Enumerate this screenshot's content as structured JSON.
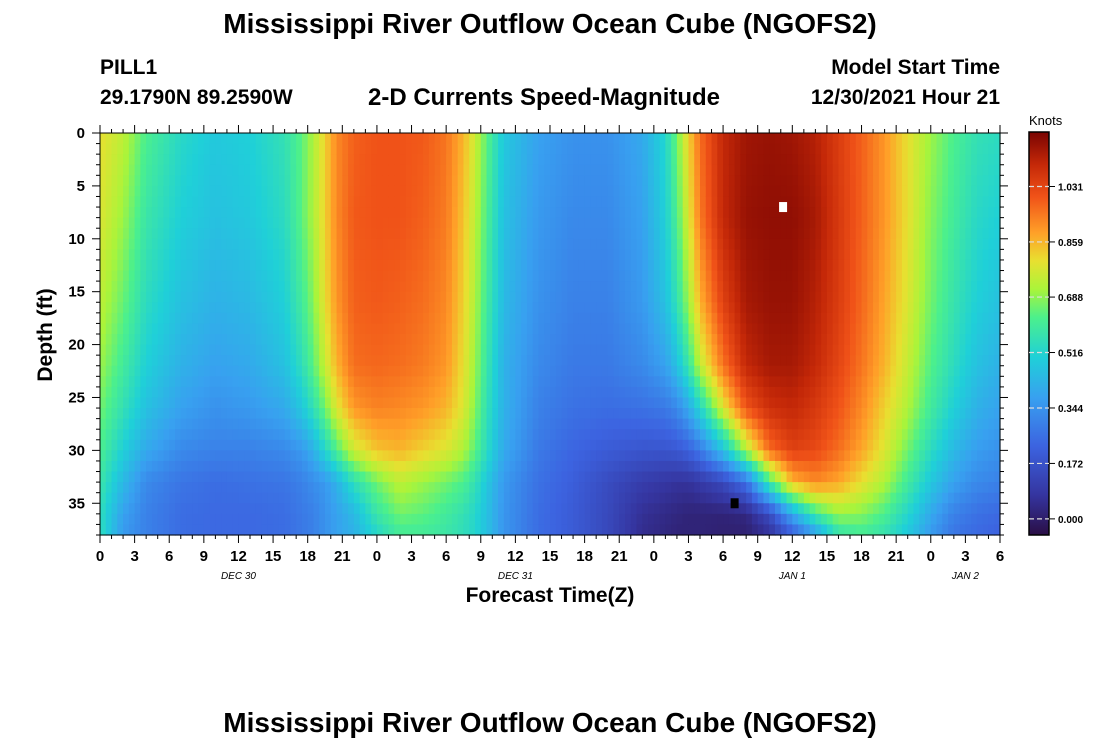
{
  "title": "Mississippi River Outflow Ocean Cube (NGOFS2)",
  "bottom_title": "Mississippi River Outflow Ocean Cube (NGOFS2)",
  "station": {
    "name": "PILL1",
    "coords": "29.1790N  89.2590W"
  },
  "plot_title": "2-D Currents Speed-Magnitude",
  "model_start": {
    "label": "Model Start Time",
    "value": "12/30/2021 Hour 21"
  },
  "chart_data": {
    "type": "heatmap",
    "xlabel": "Forecast Time(Z)",
    "ylabel": "Depth (ft)",
    "x_range_hours": [
      0,
      78
    ],
    "y_range_ft": [
      0,
      38
    ],
    "x_tick_labels": [
      "0",
      "3",
      "6",
      "9",
      "12",
      "15",
      "18",
      "21",
      "0",
      "3",
      "6",
      "9",
      "12",
      "15",
      "18",
      "21",
      "0",
      "3",
      "6",
      "9",
      "12",
      "15",
      "18",
      "21",
      "0",
      "3",
      "6"
    ],
    "date_labels": [
      {
        "label": "DEC 30",
        "hour": 12
      },
      {
        "label": "DEC 31",
        "hour": 36
      },
      {
        "label": "JAN 1",
        "hour": 60
      },
      {
        "label": "JAN 2",
        "hour": 75
      }
    ],
    "y_ticks": [
      0,
      5,
      10,
      15,
      20,
      25,
      30,
      35
    ],
    "colorbar": {
      "unit": "Knots",
      "min": -0.05,
      "max": 1.2,
      "ticks": [
        0.0,
        0.172,
        0.344,
        0.516,
        0.688,
        0.859,
        1.031
      ],
      "tick_labels": [
        "0.000",
        "0.172",
        "0.344",
        "0.516",
        "0.688",
        "0.859",
        "1.031"
      ]
    },
    "markers": [
      {
        "kind": "max",
        "color": "#ffffff",
        "hour": 59.2,
        "depth": 7
      },
      {
        "kind": "min",
        "color": "#000000",
        "hour": 55.0,
        "depth": 35
      }
    ],
    "depth_profile_ft": [
      0,
      8,
      16,
      22,
      26,
      30,
      33,
      36,
      38
    ],
    "speed_columns": [
      {
        "hour": 0,
        "speed_knots": [
          0.8,
          0.78,
          0.74,
          0.7,
          0.66,
          0.62,
          0.58,
          0.55,
          0.55
        ]
      },
      {
        "hour": 2,
        "speed_knots": [
          0.74,
          0.7,
          0.65,
          0.6,
          0.56,
          0.5,
          0.44,
          0.38,
          0.36
        ]
      },
      {
        "hour": 4,
        "speed_knots": [
          0.62,
          0.58,
          0.54,
          0.5,
          0.46,
          0.4,
          0.32,
          0.3,
          0.3
        ]
      },
      {
        "hour": 7,
        "speed_knots": [
          0.53,
          0.5,
          0.46,
          0.42,
          0.38,
          0.32,
          0.27,
          0.25,
          0.25
        ]
      },
      {
        "hour": 10,
        "speed_knots": [
          0.48,
          0.46,
          0.42,
          0.38,
          0.34,
          0.3,
          0.25,
          0.24,
          0.24
        ]
      },
      {
        "hour": 13,
        "speed_knots": [
          0.5,
          0.48,
          0.44,
          0.4,
          0.36,
          0.3,
          0.26,
          0.24,
          0.24
        ]
      },
      {
        "hour": 16,
        "speed_knots": [
          0.56,
          0.54,
          0.5,
          0.46,
          0.4,
          0.32,
          0.27,
          0.25,
          0.25
        ]
      },
      {
        "hour": 17.5,
        "speed_knots": [
          0.64,
          0.64,
          0.6,
          0.55,
          0.48,
          0.36,
          0.3,
          0.28,
          0.28
        ]
      },
      {
        "hour": 18.5,
        "speed_knots": [
          0.72,
          0.72,
          0.68,
          0.64,
          0.56,
          0.42,
          0.33,
          0.3,
          0.3
        ]
      },
      {
        "hour": 19.5,
        "speed_knots": [
          0.82,
          0.82,
          0.8,
          0.75,
          0.66,
          0.52,
          0.36,
          0.34,
          0.34
        ]
      },
      {
        "hour": 20.5,
        "speed_knots": [
          0.92,
          0.92,
          0.9,
          0.86,
          0.78,
          0.62,
          0.42,
          0.38,
          0.38
        ]
      },
      {
        "hour": 22,
        "speed_knots": [
          0.98,
          0.99,
          0.98,
          0.96,
          0.9,
          0.76,
          0.55,
          0.44,
          0.42
        ]
      },
      {
        "hour": 24,
        "speed_knots": [
          1.0,
          1.0,
          0.99,
          0.97,
          0.93,
          0.84,
          0.66,
          0.58,
          0.52
        ]
      },
      {
        "hour": 26,
        "speed_knots": [
          1.0,
          1.0,
          0.98,
          0.96,
          0.92,
          0.86,
          0.74,
          0.66,
          0.6
        ]
      },
      {
        "hour": 28,
        "speed_knots": [
          0.99,
          0.98,
          0.96,
          0.94,
          0.9,
          0.82,
          0.7,
          0.64,
          0.6
        ]
      },
      {
        "hour": 30,
        "speed_knots": [
          0.95,
          0.94,
          0.92,
          0.9,
          0.86,
          0.78,
          0.66,
          0.6,
          0.58
        ]
      },
      {
        "hour": 31.5,
        "speed_knots": [
          0.86,
          0.84,
          0.82,
          0.8,
          0.78,
          0.72,
          0.62,
          0.56,
          0.55
        ]
      },
      {
        "hour": 32.5,
        "speed_knots": [
          0.76,
          0.74,
          0.72,
          0.7,
          0.68,
          0.64,
          0.56,
          0.52,
          0.52
        ]
      },
      {
        "hour": 33.5,
        "speed_knots": [
          0.64,
          0.62,
          0.6,
          0.58,
          0.56,
          0.54,
          0.48,
          0.46,
          0.46
        ]
      },
      {
        "hour": 35,
        "speed_knots": [
          0.48,
          0.46,
          0.44,
          0.42,
          0.42,
          0.4,
          0.36,
          0.35,
          0.35
        ]
      },
      {
        "hour": 38,
        "speed_knots": [
          0.38,
          0.36,
          0.34,
          0.32,
          0.3,
          0.28,
          0.26,
          0.25,
          0.25
        ]
      },
      {
        "hour": 41,
        "speed_knots": [
          0.34,
          0.32,
          0.3,
          0.28,
          0.26,
          0.23,
          0.21,
          0.2,
          0.2
        ]
      },
      {
        "hour": 44,
        "speed_knots": [
          0.34,
          0.32,
          0.3,
          0.28,
          0.25,
          0.2,
          0.15,
          0.14,
          0.14
        ]
      },
      {
        "hour": 47,
        "speed_knots": [
          0.4,
          0.38,
          0.36,
          0.32,
          0.26,
          0.18,
          0.1,
          0.06,
          0.05
        ]
      },
      {
        "hour": 49,
        "speed_knots": [
          0.52,
          0.5,
          0.46,
          0.38,
          0.28,
          0.18,
          0.08,
          0.04,
          0.03
        ]
      },
      {
        "hour": 50,
        "speed_knots": [
          0.66,
          0.62,
          0.56,
          0.46,
          0.32,
          0.19,
          0.07,
          0.03,
          0.02
        ]
      },
      {
        "hour": 51,
        "speed_knots": [
          0.82,
          0.78,
          0.7,
          0.58,
          0.4,
          0.22,
          0.07,
          0.02,
          0.02
        ]
      },
      {
        "hour": 52,
        "speed_knots": [
          0.96,
          0.94,
          0.86,
          0.74,
          0.52,
          0.28,
          0.09,
          0.02,
          0.02
        ]
      },
      {
        "hour": 54,
        "speed_knots": [
          1.1,
          1.1,
          1.04,
          0.95,
          0.78,
          0.46,
          0.14,
          0.02,
          0.01
        ]
      },
      {
        "hour": 56,
        "speed_knots": [
          1.15,
          1.16,
          1.14,
          1.1,
          1.0,
          0.72,
          0.26,
          0.03,
          0.01
        ]
      },
      {
        "hour": 58,
        "speed_knots": [
          1.16,
          1.17,
          1.16,
          1.14,
          1.08,
          0.96,
          0.6,
          0.15,
          0.06
        ]
      },
      {
        "hour": 60,
        "speed_knots": [
          1.15,
          1.17,
          1.16,
          1.14,
          1.1,
          1.04,
          0.86,
          0.4,
          0.2
        ]
      },
      {
        "hour": 62,
        "speed_knots": [
          1.12,
          1.14,
          1.12,
          1.1,
          1.06,
          1.02,
          0.92,
          0.6,
          0.36
        ]
      },
      {
        "hour": 64,
        "speed_knots": [
          1.05,
          1.06,
          1.05,
          1.03,
          1.0,
          0.96,
          0.88,
          0.7,
          0.56
        ]
      },
      {
        "hour": 66,
        "speed_knots": [
          0.98,
          0.98,
          0.97,
          0.95,
          0.92,
          0.88,
          0.8,
          0.68,
          0.6
        ]
      },
      {
        "hour": 68,
        "speed_knots": [
          0.9,
          0.9,
          0.88,
          0.86,
          0.82,
          0.78,
          0.72,
          0.62,
          0.56
        ]
      },
      {
        "hour": 70,
        "speed_knots": [
          0.8,
          0.8,
          0.78,
          0.75,
          0.72,
          0.66,
          0.6,
          0.52,
          0.48
        ]
      },
      {
        "hour": 72,
        "speed_knots": [
          0.7,
          0.68,
          0.66,
          0.63,
          0.6,
          0.54,
          0.48,
          0.4,
          0.36
        ]
      },
      {
        "hour": 74,
        "speed_knots": [
          0.62,
          0.6,
          0.57,
          0.54,
          0.5,
          0.44,
          0.38,
          0.3,
          0.27
        ]
      },
      {
        "hour": 76,
        "speed_knots": [
          0.56,
          0.53,
          0.5,
          0.46,
          0.42,
          0.37,
          0.32,
          0.26,
          0.24
        ]
      },
      {
        "hour": 78,
        "speed_knots": [
          0.54,
          0.5,
          0.46,
          0.42,
          0.38,
          0.34,
          0.3,
          0.24,
          0.22
        ]
      }
    ]
  }
}
